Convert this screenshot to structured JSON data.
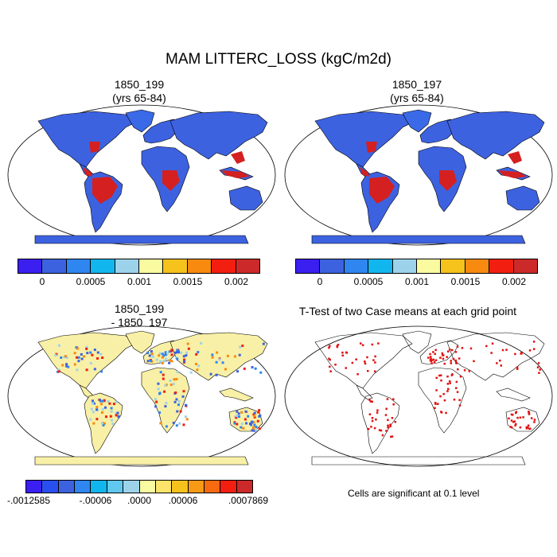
{
  "title": "MAM LITTERC_LOSS (kgC/m2d)",
  "panels": [
    {
      "title_line1": "1850_199",
      "title_line2": "(yrs 65-84)"
    },
    {
      "title_line1": "1850_197",
      "title_line2": "(yrs 65-84)"
    },
    {
      "title_line1": "1850_199",
      "title_line2": "- 1850_197"
    },
    {
      "title_line1": "T-Test of two Case means at each grid point",
      "title_line2": ""
    }
  ],
  "colorbar_top": {
    "colors": [
      "#3a1ff0",
      "#3d62e0",
      "#2f86f0",
      "#12b6ee",
      "#9dd3ea",
      "#fafaa0",
      "#f6c21c",
      "#f88a10",
      "#f21e10",
      "#cc2a2a"
    ],
    "ticks": [
      "0",
      "0.0005",
      "0.001",
      "0.0015",
      "0.002"
    ]
  },
  "colorbar_diff": {
    "colors": [
      "#3a1ff0",
      "#2a4ff0",
      "#3d62e0",
      "#2f86f0",
      "#12b6ee",
      "#60c8ee",
      "#9dd3ea",
      "#fafaa0",
      "#fce46a",
      "#f6c21c",
      "#f89a16",
      "#f86a10",
      "#f21e10",
      "#cc2a2a"
    ],
    "ticks": [
      "-.0012585",
      "-.00006",
      ".0000",
      ".00006",
      ".0007869"
    ]
  },
  "ttest_note": "Cells are significant at 0.1 level",
  "colors": {
    "ocean": "#ffffff",
    "land_blue": "#3d62e0",
    "tropic_red": "#d42020",
    "greenland_blue": "#3a6ae8",
    "antarctica_blue": "#3d62e0",
    "diff_land": "#f8f0a6",
    "significant": "#e01010"
  }
}
